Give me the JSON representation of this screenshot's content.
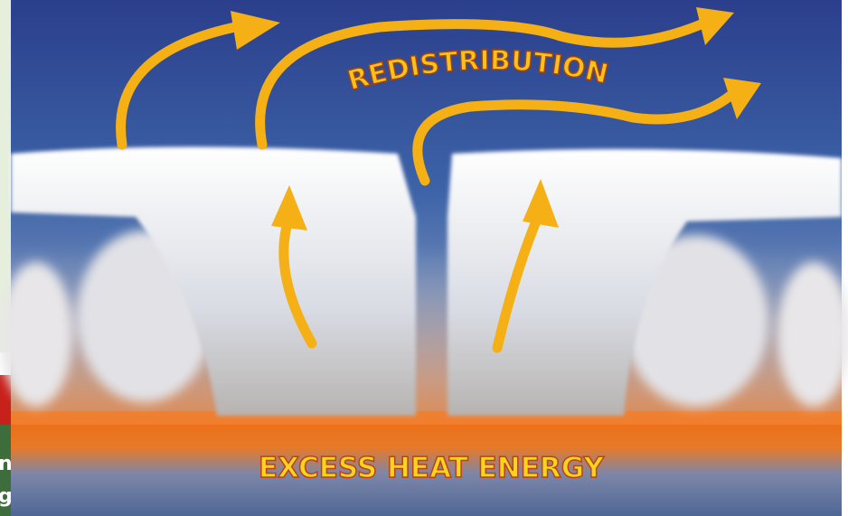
{
  "illustration": {
    "arc_label": "REDISTRIBUTION",
    "bottom_label": "EXCESS HEAT ENERGY"
  },
  "left_edge_fragments": [
    "n",
    "g"
  ]
}
